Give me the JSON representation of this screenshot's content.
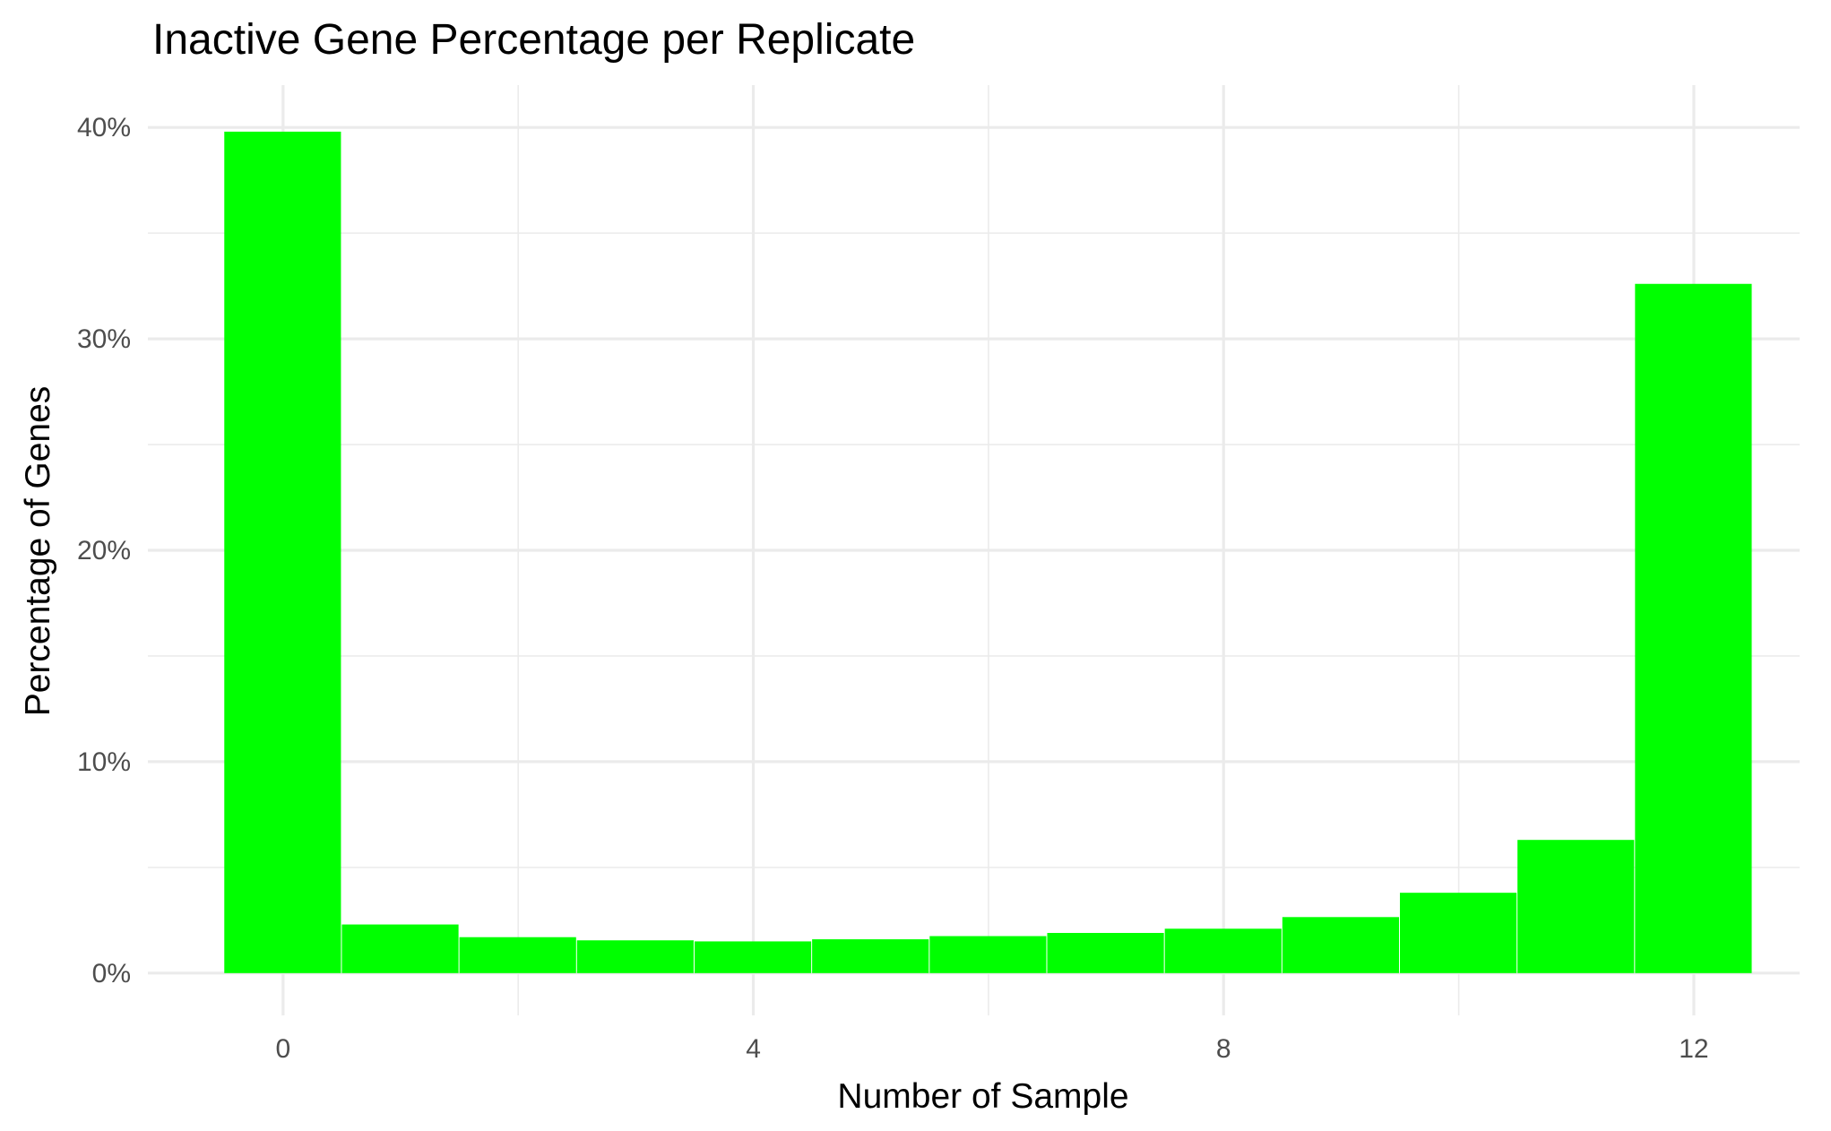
{
  "chart_data": {
    "type": "bar",
    "title": "Inactive Gene Percentage per Replicate",
    "xlabel": "Number of Sample",
    "ylabel": "Percentage of Genes",
    "x": [
      0,
      1,
      2,
      3,
      4,
      5,
      6,
      7,
      8,
      9,
      10,
      11,
      12
    ],
    "values": [
      39.8,
      2.3,
      1.7,
      1.55,
      1.5,
      1.6,
      1.75,
      1.9,
      2.1,
      2.65,
      3.8,
      6.3,
      32.6
    ],
    "xlim": [
      -1.15,
      12.9
    ],
    "ylim": [
      -2,
      42
    ],
    "x_ticks": [
      0,
      4,
      8,
      12
    ],
    "x_tick_labels": [
      "0",
      "4",
      "8",
      "12"
    ],
    "y_ticks": [
      0,
      10,
      20,
      30,
      40
    ],
    "y_tick_labels": [
      "0%",
      "10%",
      "20%",
      "30%",
      "40%"
    ],
    "bar_color": "#00ff00",
    "background": "#ffffff",
    "grid_color": "#ebebeb",
    "grid": true,
    "legend": "none"
  }
}
